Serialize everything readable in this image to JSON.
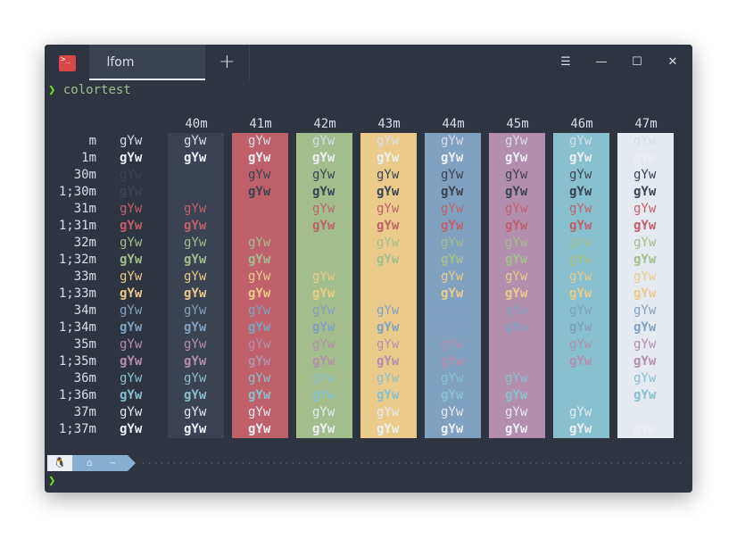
{
  "window": {
    "tab_title": "lfom",
    "new_tab_glyph": "+",
    "controls": {
      "menu": "☰",
      "minimize": "—",
      "maximize": "☐",
      "close": "✕"
    },
    "app_icon_glyph": ">_"
  },
  "terminal": {
    "prompt_glyph": "❯",
    "command": "colortest",
    "sample_text": "gYw",
    "bg_headers": [
      "40m",
      "41m",
      "42m",
      "43m",
      "44m",
      "45m",
      "46m",
      "47m"
    ],
    "row_labels": [
      "m",
      "1m",
      "30m",
      "1;30m",
      "31m",
      "1;31m",
      "32m",
      "1;32m",
      "33m",
      "1;33m",
      "34m",
      "1;34m",
      "35m",
      "1;35m",
      "36m",
      "1;36m",
      "37m",
      "1;37m"
    ],
    "bottom_prompt_glyph": "❯"
  },
  "colors": {
    "terminal_bg": "#2e3440",
    "background_columns": [
      "#3b4252",
      "#bf616a",
      "#a3be8c",
      "#ebcb8b",
      "#81a1c1",
      "#b48ead",
      "#88c0d0",
      "#e5e9f0"
    ],
    "default_fg": "#d8dee9",
    "bright_default_fg": "#eceff4",
    "foreground_rows": [
      "#d8dee9",
      "#eceff4",
      "#3b4252",
      "#3b4252",
      "#bf616a",
      "#bf616a",
      "#a3be8c",
      "#a3be8c",
      "#ebcb8b",
      "#ebcb8b",
      "#81a1c1",
      "#81a1c1",
      "#b48ead",
      "#b48ead",
      "#88c0d0",
      "#88c0d0",
      "#e5e9f0",
      "#eceff4"
    ]
  },
  "powerline": {
    "os_icon": "penguin-icon",
    "os_glyph": "🐧",
    "home_icon": "home-icon",
    "home_glyph": "⌂",
    "path": "~"
  }
}
